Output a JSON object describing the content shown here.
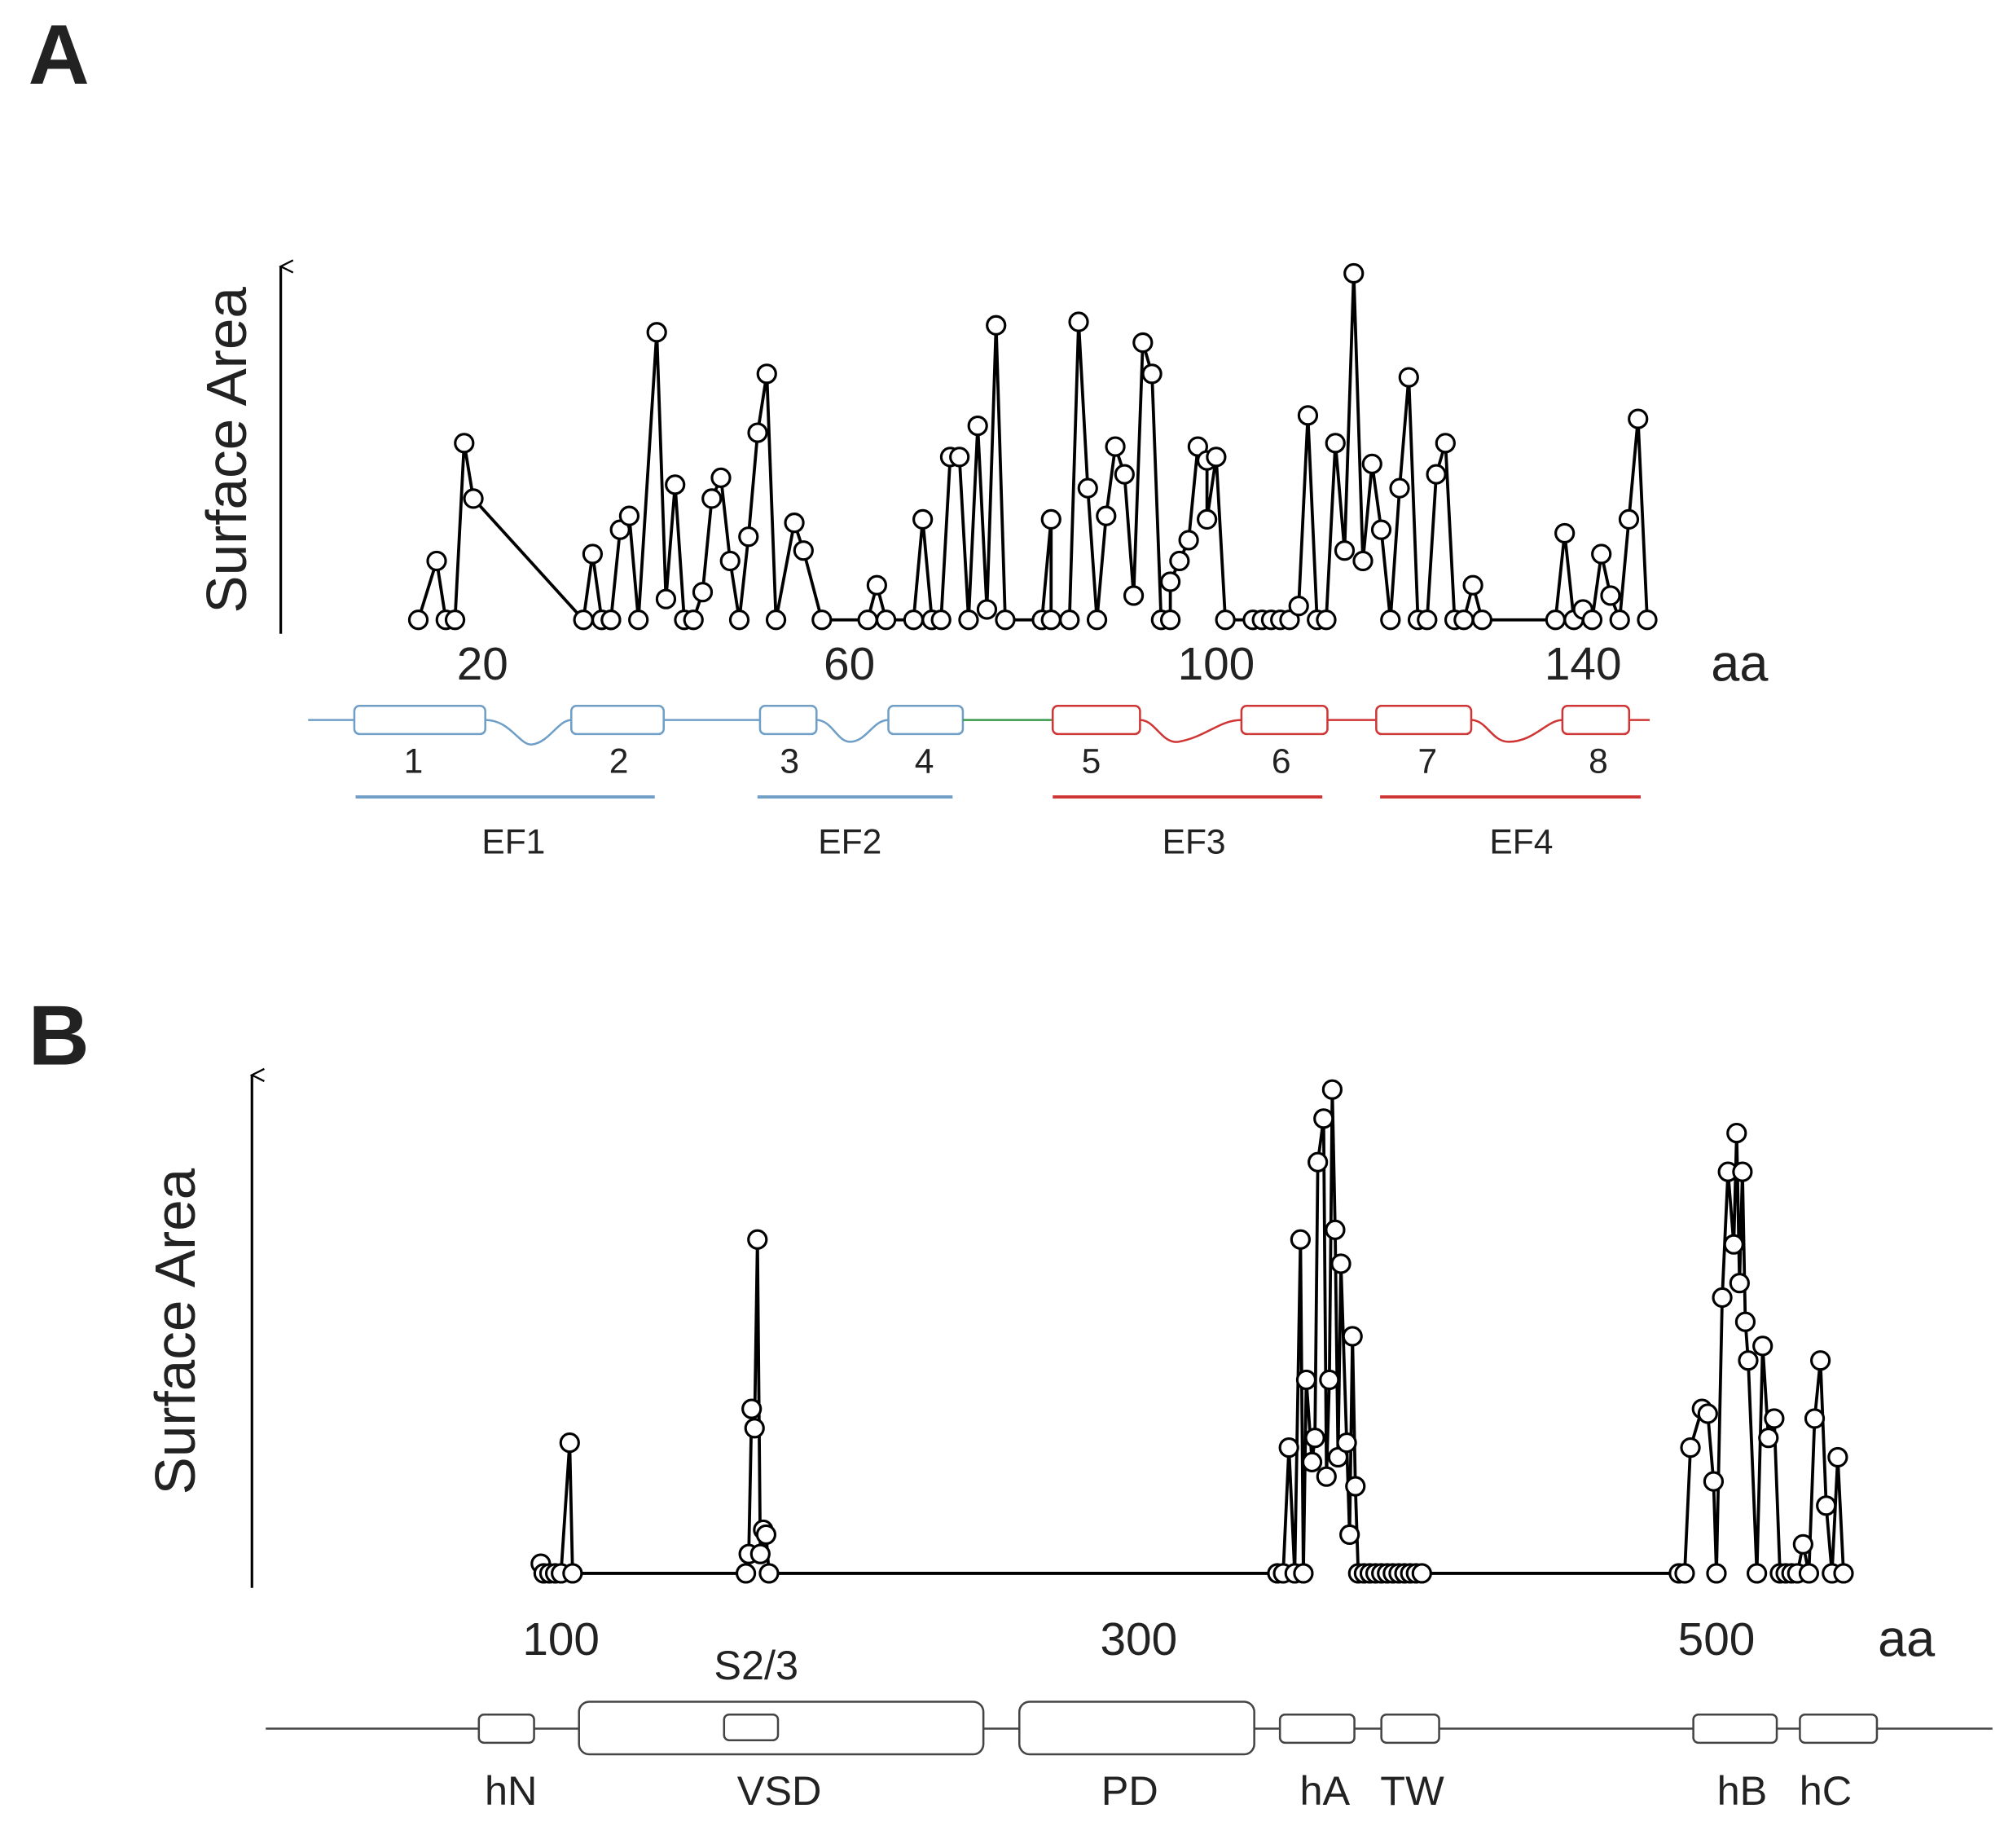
{
  "chart_data": [
    {
      "type": "line",
      "panel_label": "A",
      "ylabel": "Surface Area",
      "xlabel": "aa",
      "color": "#000000",
      "marker_fill": "#ffffff",
      "x": [
        13,
        15,
        16,
        17,
        18,
        19,
        31,
        32,
        33,
        34,
        34,
        35,
        36,
        37,
        39,
        40,
        41,
        42,
        43,
        44,
        45,
        46,
        47,
        48,
        49,
        50,
        51,
        52,
        54,
        55,
        57,
        62,
        63,
        64,
        67,
        68,
        69,
        70,
        71,
        72,
        73,
        74,
        75,
        76,
        77,
        81,
        82,
        82,
        84,
        85,
        86,
        87,
        88,
        89,
        90,
        91,
        92,
        93,
        94,
        95,
        95,
        96,
        97,
        98,
        99,
        99,
        100,
        101,
        104,
        105,
        106,
        107,
        108,
        109,
        110,
        111,
        112,
        113,
        114,
        115,
        116,
        117,
        118,
        119,
        120,
        121,
        122,
        123,
        124,
        125,
        126,
        127,
        128,
        129,
        137,
        138,
        139,
        140,
        141,
        142,
        143,
        144,
        145,
        146,
        147
      ],
      "values": [
        0,
        17,
        0,
        0,
        51,
        35,
        0,
        19,
        0,
        0,
        0,
        26,
        30,
        0,
        83,
        6,
        39,
        0,
        0,
        8,
        35,
        41,
        17,
        0,
        24,
        54,
        71,
        0,
        28,
        20,
        0,
        0,
        10,
        0,
        0,
        29,
        0,
        0,
        47,
        47,
        0,
        56,
        3,
        85,
        0,
        0,
        29,
        0,
        0,
        86,
        38,
        0,
        30,
        50,
        42,
        7,
        80,
        71,
        0,
        0,
        11,
        17,
        23,
        50,
        46,
        29,
        47,
        0,
        0,
        0,
        0,
        0,
        0,
        4,
        59,
        0,
        0,
        51,
        20,
        100,
        17,
        45,
        26,
        0,
        38,
        70,
        0,
        0,
        42,
        51,
        0,
        0,
        10,
        0,
        0,
        25,
        0,
        3,
        0,
        19,
        7,
        0,
        29,
        58,
        0
      ],
      "xlim": [
        -2,
        150
      ],
      "ylim": [
        -4,
        102
      ],
      "xticks": [
        20,
        60,
        100,
        140
      ],
      "helix_labels": [
        "1",
        "2",
        "3",
        "4",
        "5",
        "6",
        "7",
        "8"
      ],
      "ef_labels": [
        "EF1",
        "EF2",
        "EF3",
        "EF4"
      ]
    },
    {
      "type": "line",
      "panel_label": "B",
      "ylabel": "Surface Area",
      "xlabel": "aa",
      "color": "#000000",
      "marker_fill": "#ffffff",
      "x": [
        93,
        94,
        96,
        98,
        100,
        103,
        104,
        164,
        165,
        166,
        167,
        168,
        169,
        170,
        171,
        172,
        348,
        350,
        352,
        354,
        356,
        357,
        358,
        360,
        361,
        362,
        364,
        365,
        366,
        367,
        368,
        369,
        370,
        372,
        373,
        374,
        375,
        376,
        378,
        380,
        382,
        384,
        386,
        388,
        390,
        392,
        394,
        396,
        398,
        487,
        489,
        491,
        495,
        497,
        499,
        500,
        502,
        504,
        506,
        507,
        508,
        509,
        510,
        511,
        514,
        516,
        518,
        520,
        522,
        524,
        526,
        528,
        530,
        532,
        534,
        536,
        538,
        540,
        542,
        544
      ],
      "values": [
        2,
        0,
        0,
        0,
        0,
        27,
        0,
        0,
        4,
        34,
        30,
        69,
        4,
        9,
        8,
        0,
        0,
        0,
        26,
        0,
        69,
        0,
        40,
        23,
        28,
        85,
        94,
        20,
        40,
        100,
        71,
        24,
        64,
        27,
        8,
        49,
        18,
        0,
        0,
        0,
        0,
        0,
        0,
        0,
        0,
        0,
        0,
        0,
        0,
        0,
        0,
        26,
        34,
        33,
        19,
        0,
        57,
        83,
        68,
        91,
        60,
        83,
        52,
        44,
        0,
        47,
        28,
        32,
        0,
        0,
        0,
        0,
        6,
        0,
        32,
        44,
        14,
        0,
        24,
        0
      ],
      "xlim": [
        -7,
        560
      ],
      "ylim": [
        -3,
        103
      ],
      "xticks": [
        100,
        300,
        500
      ],
      "subdomain_label": "S2/3",
      "domain_labels": [
        "hN",
        "VSD",
        "PD",
        "hA",
        "TW",
        "hB",
        "hC"
      ]
    }
  ]
}
